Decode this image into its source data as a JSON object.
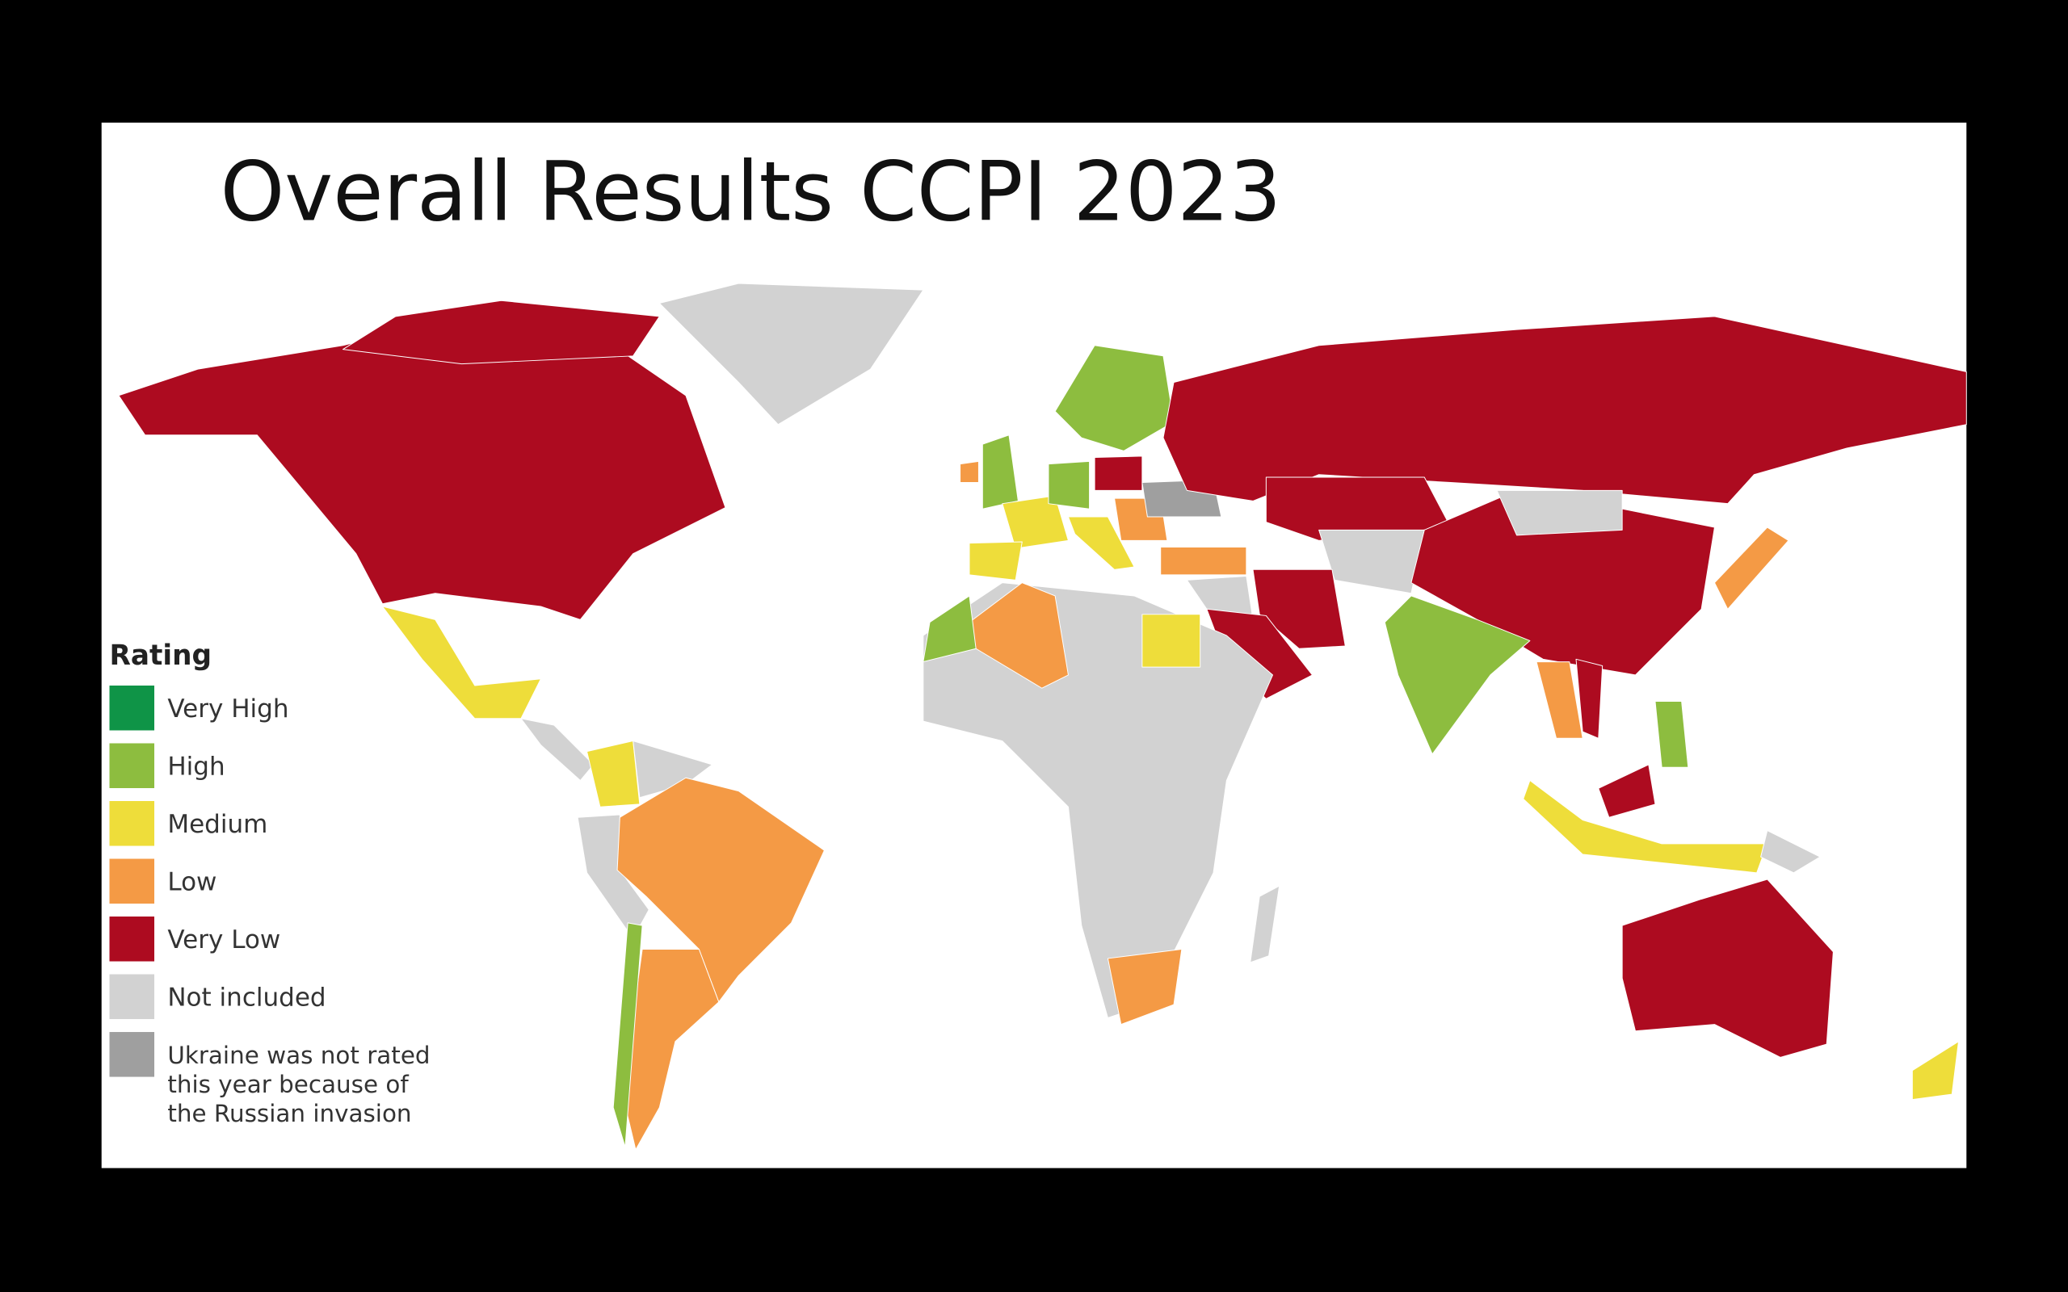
{
  "title": "Overall Results CCPI 2023",
  "legend": {
    "title": "Rating",
    "items": [
      {
        "label": "Very High",
        "color": "#0f9447"
      },
      {
        "label": "High",
        "color": "#8dbd3f"
      },
      {
        "label": "Medium",
        "color": "#eedd3a"
      },
      {
        "label": "Low",
        "color": "#f49a45"
      },
      {
        "label": "Very Low",
        "color": "#ad0b20"
      },
      {
        "label": "Not included",
        "color": "#d2d2d2"
      },
      {
        "label": [
          "Ukraine was not rated",
          "this year because of",
          "the Russian invasion"
        ],
        "color": "#9f9f9f"
      }
    ]
  }
}
